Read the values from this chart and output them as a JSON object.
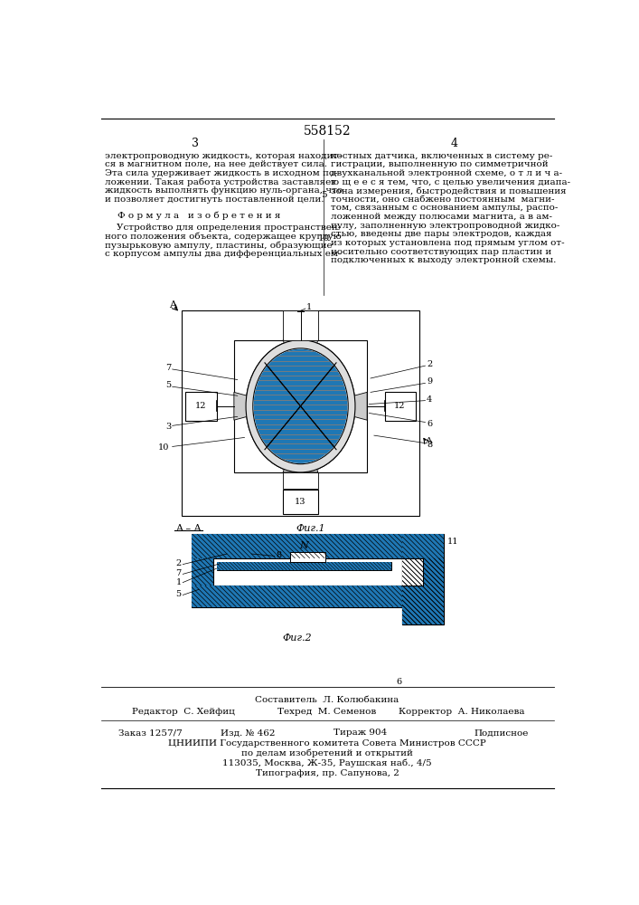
{
  "page_number_left": "3",
  "page_number_right": "4",
  "patent_number": "558152",
  "bg_color": "#ffffff",
  "text_color": "#000000",
  "formula_heading": "Ф о р м у л а   и з о б р е т е н и я",
  "fig1_label": "Фиг.1",
  "fig2_label": "Фиг.2",
  "footer_left": "Редактор  С. Хейфиц",
  "footer_center_tech": "Техред  М. Семенов",
  "footer_right": "Корректор  А. Николаева",
  "footer_composer": "Составитель  Л. Колюбакина",
  "footer_order": "Заказ 1257/7",
  "footer_izd": "Изд. № 462",
  "footer_tirazh": "Тираж 904",
  "footer_podpisnoe": "Подписное",
  "footer_org": "ЦНИИПИ Государственного комитета Совета Министров СССР",
  "footer_org2": "по делам изобретений и открытий",
  "footer_addr": "113035, Москва, Ж-35, Раушская наб., 4/5",
  "footer_tipog": "Типография, пр. Сапунова, 2"
}
